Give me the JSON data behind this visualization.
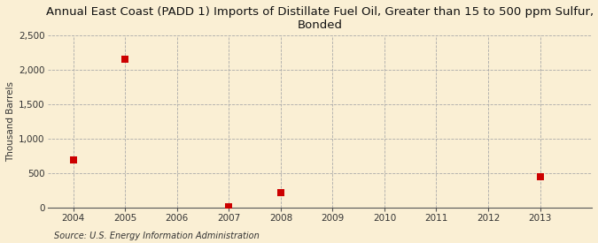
{
  "title": "Annual East Coast (PADD 1) Imports of Distillate Fuel Oil, Greater than 15 to 500 ppm Sulfur,\nBonded",
  "ylabel": "Thousand Barrels",
  "source": "Source: U.S. Energy Information Administration",
  "background_color": "#faefd4",
  "data_points": [
    {
      "year": 2004,
      "value": 693
    },
    {
      "year": 2005,
      "value": 2151
    },
    {
      "year": 2007,
      "value": 9
    },
    {
      "year": 2008,
      "value": 220
    },
    {
      "year": 2013,
      "value": 447
    }
  ],
  "xlim": [
    2003.5,
    2014.0
  ],
  "ylim": [
    0,
    2500
  ],
  "yticks": [
    0,
    500,
    1000,
    1500,
    2000,
    2500
  ],
  "xticks": [
    2004,
    2005,
    2006,
    2007,
    2008,
    2009,
    2010,
    2011,
    2012,
    2013
  ],
  "marker_color": "#cc0000",
  "marker_size": 28,
  "grid_color": "#aaaaaa",
  "grid_style": "--",
  "title_fontsize": 9.5,
  "axis_label_fontsize": 7.5,
  "tick_fontsize": 7.5,
  "source_fontsize": 7
}
